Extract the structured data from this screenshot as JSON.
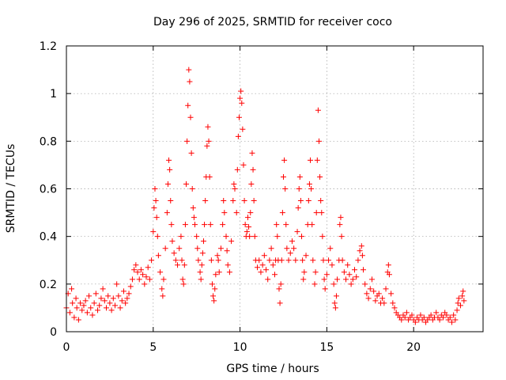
{
  "chart_data": {
    "type": "scatter",
    "title": "Day 296 of 2025, SRMTID for receiver coco",
    "xlabel": "GPS time / hours",
    "ylabel": "SRMTID / TECUs",
    "xlim": [
      0,
      24
    ],
    "ylim": [
      0,
      1.2
    ],
    "x_ticks": [
      0,
      5,
      10,
      15,
      20
    ],
    "x_tick_labels": [
      "0",
      "5",
      "10",
      "15",
      "20"
    ],
    "y_ticks": [
      0,
      0.2,
      0.4,
      0.6,
      0.8,
      1.0,
      1.2
    ],
    "y_tick_labels": [
      "0",
      "0.2",
      "0.4",
      "0.6",
      "0.8",
      "1",
      "1.2"
    ],
    "grid": true,
    "marker": "+",
    "color": "#ff0000",
    "series": [
      {
        "name": "SRMTID",
        "points": [
          [
            0.0,
            0.1
          ],
          [
            0.1,
            0.16
          ],
          [
            0.2,
            0.08
          ],
          [
            0.3,
            0.18
          ],
          [
            0.35,
            0.12
          ],
          [
            0.45,
            0.06
          ],
          [
            0.55,
            0.14
          ],
          [
            0.6,
            0.1
          ],
          [
            0.7,
            0.05
          ],
          [
            0.8,
            0.12
          ],
          [
            0.9,
            0.09
          ],
          [
            1.0,
            0.11
          ],
          [
            1.1,
            0.13
          ],
          [
            1.2,
            0.08
          ],
          [
            1.3,
            0.15
          ],
          [
            1.4,
            0.1
          ],
          [
            1.5,
            0.07
          ],
          [
            1.6,
            0.12
          ],
          [
            1.7,
            0.16
          ],
          [
            1.8,
            0.09
          ],
          [
            1.9,
            0.11
          ],
          [
            2.0,
            0.14
          ],
          [
            2.1,
            0.18
          ],
          [
            2.2,
            0.13
          ],
          [
            2.3,
            0.1
          ],
          [
            2.4,
            0.15
          ],
          [
            2.5,
            0.12
          ],
          [
            2.6,
            0.09
          ],
          [
            2.7,
            0.14
          ],
          [
            2.8,
            0.11
          ],
          [
            2.9,
            0.2
          ],
          [
            3.0,
            0.15
          ],
          [
            3.1,
            0.1
          ],
          [
            3.2,
            0.13
          ],
          [
            3.3,
            0.17
          ],
          [
            3.4,
            0.12
          ],
          [
            3.5,
            0.14
          ],
          [
            3.6,
            0.16
          ],
          [
            3.7,
            0.19
          ],
          [
            3.8,
            0.22
          ],
          [
            3.9,
            0.26
          ],
          [
            4.0,
            0.28
          ],
          [
            4.1,
            0.25
          ],
          [
            4.2,
            0.22
          ],
          [
            4.3,
            0.26
          ],
          [
            4.4,
            0.24
          ],
          [
            4.5,
            0.2
          ],
          [
            4.6,
            0.23
          ],
          [
            4.7,
            0.27
          ],
          [
            4.8,
            0.22
          ],
          [
            4.9,
            0.3
          ],
          [
            5.0,
            0.42
          ],
          [
            5.05,
            0.52
          ],
          [
            5.1,
            0.6
          ],
          [
            5.15,
            0.55
          ],
          [
            5.2,
            0.48
          ],
          [
            5.25,
            0.4
          ],
          [
            5.3,
            0.32
          ],
          [
            5.4,
            0.25
          ],
          [
            5.5,
            0.18
          ],
          [
            5.55,
            0.15
          ],
          [
            5.6,
            0.22
          ],
          [
            5.7,
            0.35
          ],
          [
            5.8,
            0.5
          ],
          [
            5.85,
            0.62
          ],
          [
            5.9,
            0.72
          ],
          [
            5.95,
            0.68
          ],
          [
            6.0,
            0.55
          ],
          [
            6.05,
            0.45
          ],
          [
            6.1,
            0.38
          ],
          [
            6.2,
            0.33
          ],
          [
            6.3,
            0.3
          ],
          [
            6.4,
            0.28
          ],
          [
            6.5,
            0.35
          ],
          [
            6.6,
            0.4
          ],
          [
            6.65,
            0.3
          ],
          [
            6.7,
            0.22
          ],
          [
            6.75,
            0.2
          ],
          [
            6.8,
            0.28
          ],
          [
            6.85,
            0.45
          ],
          [
            6.9,
            0.62
          ],
          [
            6.95,
            0.8
          ],
          [
            7.0,
            0.95
          ],
          [
            7.05,
            1.1
          ],
          [
            7.1,
            1.05
          ],
          [
            7.15,
            0.9
          ],
          [
            7.2,
            0.75
          ],
          [
            7.25,
            0.6
          ],
          [
            7.3,
            0.52
          ],
          [
            7.35,
            0.48
          ],
          [
            7.4,
            0.45
          ],
          [
            7.5,
            0.4
          ],
          [
            7.55,
            0.35
          ],
          [
            7.6,
            0.3
          ],
          [
            7.7,
            0.25
          ],
          [
            7.75,
            0.22
          ],
          [
            7.8,
            0.28
          ],
          [
            7.85,
            0.33
          ],
          [
            7.9,
            0.38
          ],
          [
            7.95,
            0.45
          ],
          [
            8.0,
            0.55
          ],
          [
            8.05,
            0.65
          ],
          [
            8.1,
            0.78
          ],
          [
            8.15,
            0.86
          ],
          [
            8.2,
            0.8
          ],
          [
            8.25,
            0.65
          ],
          [
            8.3,
            0.45
          ],
          [
            8.35,
            0.3
          ],
          [
            8.4,
            0.2
          ],
          [
            8.45,
            0.15
          ],
          [
            8.5,
            0.13
          ],
          [
            8.55,
            0.18
          ],
          [
            8.6,
            0.24
          ],
          [
            8.7,
            0.32
          ],
          [
            8.75,
            0.3
          ],
          [
            8.8,
            0.25
          ],
          [
            8.9,
            0.35
          ],
          [
            9.0,
            0.45
          ],
          [
            9.05,
            0.55
          ],
          [
            9.1,
            0.5
          ],
          [
            9.2,
            0.4
          ],
          [
            9.25,
            0.34
          ],
          [
            9.3,
            0.28
          ],
          [
            9.4,
            0.25
          ],
          [
            9.5,
            0.38
          ],
          [
            9.6,
            0.55
          ],
          [
            9.65,
            0.62
          ],
          [
            9.7,
            0.6
          ],
          [
            9.8,
            0.5
          ],
          [
            9.85,
            0.68
          ],
          [
            9.9,
            0.82
          ],
          [
            9.95,
            0.9
          ],
          [
            10.0,
            0.98
          ],
          [
            10.05,
            1.01
          ],
          [
            10.1,
            0.96
          ],
          [
            10.15,
            0.85
          ],
          [
            10.2,
            0.7
          ],
          [
            10.25,
            0.55
          ],
          [
            10.3,
            0.45
          ],
          [
            10.35,
            0.4
          ],
          [
            10.4,
            0.42
          ],
          [
            10.45,
            0.48
          ],
          [
            10.5,
            0.44
          ],
          [
            10.55,
            0.4
          ],
          [
            10.6,
            0.5
          ],
          [
            10.65,
            0.62
          ],
          [
            10.7,
            0.75
          ],
          [
            10.75,
            0.68
          ],
          [
            10.8,
            0.55
          ],
          [
            10.85,
            0.4
          ],
          [
            10.9,
            0.3
          ],
          [
            11.0,
            0.27
          ],
          [
            11.1,
            0.3
          ],
          [
            11.2,
            0.25
          ],
          [
            11.3,
            0.28
          ],
          [
            11.4,
            0.32
          ],
          [
            11.5,
            0.26
          ],
          [
            11.6,
            0.22
          ],
          [
            11.7,
            0.3
          ],
          [
            11.8,
            0.35
          ],
          [
            11.9,
            0.28
          ],
          [
            12.0,
            0.24
          ],
          [
            12.05,
            0.3
          ],
          [
            12.1,
            0.45
          ],
          [
            12.15,
            0.4
          ],
          [
            12.2,
            0.3
          ],
          [
            12.25,
            0.18
          ],
          [
            12.3,
            0.12
          ],
          [
            12.35,
            0.2
          ],
          [
            12.4,
            0.3
          ],
          [
            12.45,
            0.5
          ],
          [
            12.5,
            0.65
          ],
          [
            12.55,
            0.72
          ],
          [
            12.6,
            0.6
          ],
          [
            12.65,
            0.45
          ],
          [
            12.7,
            0.35
          ],
          [
            12.8,
            0.3
          ],
          [
            12.9,
            0.33
          ],
          [
            13.0,
            0.38
          ],
          [
            13.1,
            0.35
          ],
          [
            13.2,
            0.3
          ],
          [
            13.3,
            0.42
          ],
          [
            13.35,
            0.52
          ],
          [
            13.4,
            0.6
          ],
          [
            13.45,
            0.65
          ],
          [
            13.5,
            0.55
          ],
          [
            13.55,
            0.4
          ],
          [
            13.6,
            0.3
          ],
          [
            13.65,
            0.22
          ],
          [
            13.7,
            0.25
          ],
          [
            13.8,
            0.32
          ],
          [
            13.9,
            0.45
          ],
          [
            13.95,
            0.55
          ],
          [
            14.0,
            0.62
          ],
          [
            14.05,
            0.72
          ],
          [
            14.1,
            0.6
          ],
          [
            14.15,
            0.45
          ],
          [
            14.2,
            0.3
          ],
          [
            14.3,
            0.2
          ],
          [
            14.35,
            0.25
          ],
          [
            14.4,
            0.5
          ],
          [
            14.45,
            0.72
          ],
          [
            14.5,
            0.93
          ],
          [
            14.55,
            0.8
          ],
          [
            14.6,
            0.65
          ],
          [
            14.65,
            0.55
          ],
          [
            14.7,
            0.5
          ],
          [
            14.75,
            0.4
          ],
          [
            14.8,
            0.3
          ],
          [
            14.85,
            0.22
          ],
          [
            14.9,
            0.18
          ],
          [
            15.0,
            0.24
          ],
          [
            15.1,
            0.3
          ],
          [
            15.2,
            0.35
          ],
          [
            15.3,
            0.28
          ],
          [
            15.4,
            0.2
          ],
          [
            15.45,
            0.12
          ],
          [
            15.5,
            0.1
          ],
          [
            15.55,
            0.15
          ],
          [
            15.6,
            0.22
          ],
          [
            15.7,
            0.3
          ],
          [
            15.75,
            0.45
          ],
          [
            15.8,
            0.48
          ],
          [
            15.85,
            0.4
          ],
          [
            15.9,
            0.3
          ],
          [
            16.0,
            0.25
          ],
          [
            16.1,
            0.22
          ],
          [
            16.2,
            0.28
          ],
          [
            16.3,
            0.24
          ],
          [
            16.4,
            0.2
          ],
          [
            16.5,
            0.22
          ],
          [
            16.6,
            0.26
          ],
          [
            16.7,
            0.23
          ],
          [
            16.8,
            0.3
          ],
          [
            16.9,
            0.34
          ],
          [
            17.0,
            0.36
          ],
          [
            17.05,
            0.32
          ],
          [
            17.1,
            0.26
          ],
          [
            17.2,
            0.2
          ],
          [
            17.3,
            0.16
          ],
          [
            17.4,
            0.14
          ],
          [
            17.5,
            0.18
          ],
          [
            17.6,
            0.22
          ],
          [
            17.7,
            0.17
          ],
          [
            17.8,
            0.13
          ],
          [
            17.9,
            0.15
          ],
          [
            18.0,
            0.16
          ],
          [
            18.1,
            0.12
          ],
          [
            18.2,
            0.14
          ],
          [
            18.3,
            0.12
          ],
          [
            18.4,
            0.18
          ],
          [
            18.5,
            0.25
          ],
          [
            18.55,
            0.28
          ],
          [
            18.6,
            0.24
          ],
          [
            18.7,
            0.16
          ],
          [
            18.8,
            0.12
          ],
          [
            18.9,
            0.1
          ],
          [
            19.0,
            0.08
          ],
          [
            19.1,
            0.07
          ],
          [
            19.2,
            0.06
          ],
          [
            19.3,
            0.05
          ],
          [
            19.4,
            0.07
          ],
          [
            19.5,
            0.06
          ],
          [
            19.6,
            0.08
          ],
          [
            19.7,
            0.05
          ],
          [
            19.8,
            0.06
          ],
          [
            19.9,
            0.07
          ],
          [
            20.0,
            0.05
          ],
          [
            20.1,
            0.04
          ],
          [
            20.2,
            0.06
          ],
          [
            20.3,
            0.05
          ],
          [
            20.4,
            0.07
          ],
          [
            20.5,
            0.05
          ],
          [
            20.6,
            0.06
          ],
          [
            20.7,
            0.04
          ],
          [
            20.8,
            0.05
          ],
          [
            20.9,
            0.06
          ],
          [
            21.0,
            0.07
          ],
          [
            21.1,
            0.05
          ],
          [
            21.2,
            0.06
          ],
          [
            21.3,
            0.08
          ],
          [
            21.4,
            0.06
          ],
          [
            21.5,
            0.05
          ],
          [
            21.6,
            0.07
          ],
          [
            21.7,
            0.06
          ],
          [
            21.8,
            0.08
          ],
          [
            21.9,
            0.07
          ],
          [
            22.0,
            0.05
          ],
          [
            22.1,
            0.06
          ],
          [
            22.2,
            0.04
          ],
          [
            22.3,
            0.07
          ],
          [
            22.4,
            0.05
          ],
          [
            22.5,
            0.09
          ],
          [
            22.55,
            0.12
          ],
          [
            22.6,
            0.14
          ],
          [
            22.7,
            0.11
          ],
          [
            22.8,
            0.15
          ],
          [
            22.85,
            0.17
          ],
          [
            22.9,
            0.13
          ]
        ]
      }
    ]
  }
}
